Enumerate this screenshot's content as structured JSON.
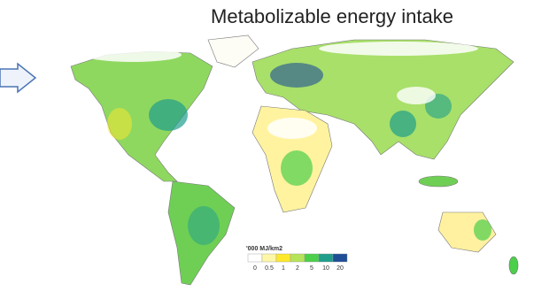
{
  "title": "Metabolizable energy intake",
  "legend": {
    "title": "'000 MJ/km2",
    "breaks": [
      0,
      0.5,
      1,
      2,
      5,
      10,
      20
    ],
    "colors": [
      "#ffffff",
      "#fff7a8",
      "#ffe82a",
      "#b5e35a",
      "#4ccf4a",
      "#1f9e8c",
      "#1f4e96"
    ]
  }
}
